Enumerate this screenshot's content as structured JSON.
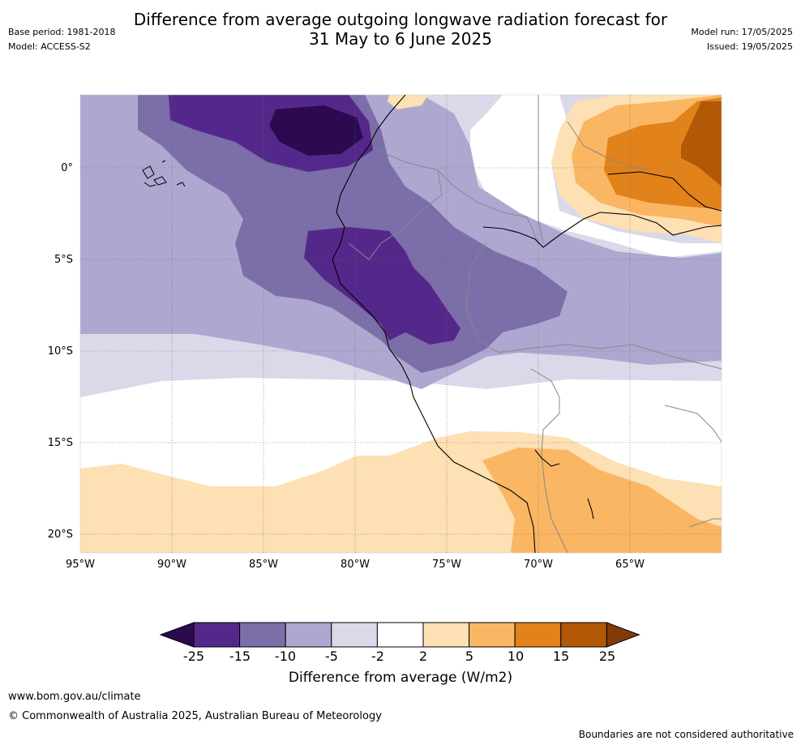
{
  "title": {
    "line1": "Difference from average outgoing longwave radiation forecast for",
    "line2": "31 May to 6 June 2025"
  },
  "meta": {
    "base_period": "Base period: 1981-2018",
    "model": "Model: ACCESS-S2",
    "model_run": "Model run: 17/05/2025",
    "issued": "Issued: 19/05/2025"
  },
  "map": {
    "lat_labels": [
      "0°",
      "5°S",
      "10°S",
      "15°S",
      "20°S"
    ],
    "lon_labels": [
      "95°W",
      "90°W",
      "85°W",
      "80°W",
      "75°W",
      "70°W",
      "65°W"
    ]
  },
  "colorbar": {
    "labels": [
      "-25",
      "-15",
      "-10",
      "-5",
      "-2",
      "2",
      "5",
      "10",
      "15",
      "25"
    ],
    "colors": [
      "#2b0a4f",
      "#54288a",
      "#7c6ea8",
      "#aea8d0",
      "#d9d9ea",
      "#ffffff",
      "#fde0b4",
      "#fbb663",
      "#e2821a",
      "#b35806",
      "#7f3b08"
    ],
    "title": "Difference from average (W/m2)"
  },
  "footer": {
    "url": "www.bom.gov.au/climate",
    "copyright": "© Commonwealth of Australia 2025, Australian Bureau of Meteorology",
    "disclaimer": "Boundaries are not considered authoritative"
  }
}
